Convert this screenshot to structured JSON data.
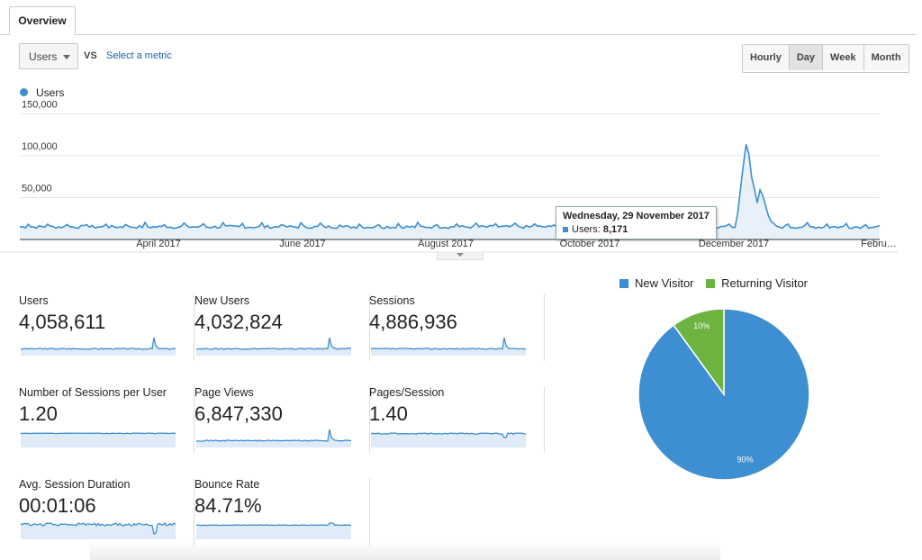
{
  "tabs": {
    "active": "Overview"
  },
  "controls": {
    "metric": "Users",
    "vs": "VS",
    "select_metric": "Select a metric",
    "granularity": [
      "Hourly",
      "Day",
      "Week",
      "Month"
    ],
    "granularity_active": "Day"
  },
  "chart_data": {
    "type": "area",
    "series_name": "Users",
    "y_ticks": [
      "150,000",
      "100,000",
      "50,000"
    ],
    "x_ticks": [
      "April 2017",
      "June 2017",
      "August 2017",
      "October 2017",
      "December 2017",
      "Febru…"
    ],
    "ylim": [
      0,
      160000
    ],
    "color": "#3d8fd1",
    "baseline": 15000,
    "peak_date": "mid-December 2017",
    "peak_value": 115000
  },
  "tooltip": {
    "date": "Wednesday, 29 November 2017",
    "label": "Users:",
    "value": "8,171"
  },
  "metrics": [
    {
      "label": "Users",
      "value": "4,058,611",
      "spark": "spike"
    },
    {
      "label": "New Users",
      "value": "4,032,824",
      "spark": "spike"
    },
    {
      "label": "Sessions",
      "value": "4,886,936",
      "spark": "spike"
    },
    {
      "label": "Number of Sessions per User",
      "value": "1.20",
      "spark": "flat"
    },
    {
      "label": "Page Views",
      "value": "6,847,330",
      "spark": "spike"
    },
    {
      "label": "Pages/Session",
      "value": "1.40",
      "spark": "dip"
    },
    {
      "label": "Avg. Session Duration",
      "value": "00:01:06",
      "spark": "noisy-dip"
    },
    {
      "label": "Bounce Rate",
      "value": "84.71%",
      "spark": "flat-bump"
    }
  ],
  "pie": {
    "legend": [
      "New Visitor",
      "Returning Visitor"
    ],
    "colors": [
      "#3d8fd1",
      "#6db33f"
    ],
    "values": [
      90,
      10
    ],
    "labels": [
      "90%",
      "10%"
    ]
  }
}
